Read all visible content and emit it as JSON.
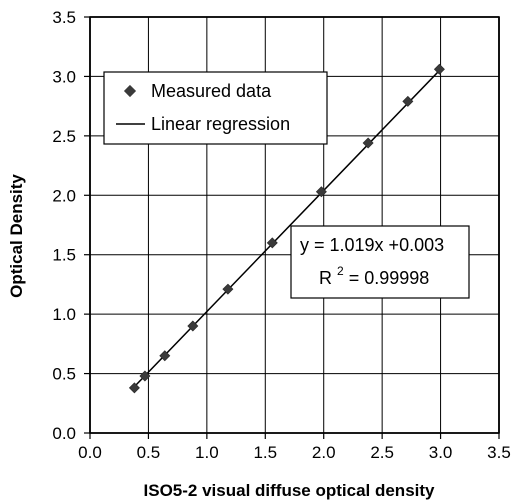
{
  "chart_data": {
    "type": "scatter",
    "title": "",
    "xlabel": "ISO5-2 visual diffuse optical density",
    "ylabel": "Optical Density",
    "xlim": [
      0.0,
      3.5
    ],
    "ylim": [
      0.0,
      3.5
    ],
    "xticks": [
      "0.0",
      "0.5",
      "1.0",
      "1.5",
      "2.0",
      "2.5",
      "3.0",
      "3.5"
    ],
    "yticks": [
      "0.0",
      "0.5",
      "1.0",
      "1.5",
      "2.0",
      "2.5",
      "3.0",
      "3.5"
    ],
    "grid": true,
    "legend_position": "top-left",
    "series": [
      {
        "name": "Measured data",
        "kind": "scatter",
        "marker": "diamond",
        "color": "#3a3a3a",
        "x": [
          0.38,
          0.47,
          0.64,
          0.88,
          1.18,
          1.56,
          1.98,
          2.38,
          2.72,
          2.99
        ],
        "y": [
          0.38,
          0.48,
          0.65,
          0.9,
          1.21,
          1.6,
          2.03,
          2.44,
          2.79,
          3.06
        ]
      },
      {
        "name": "Linear regression",
        "kind": "line",
        "color": "#000000",
        "x": [
          0.38,
          3.0
        ],
        "y": [
          0.39,
          3.06
        ]
      }
    ],
    "annotation": {
      "equation_prefix": "y = ",
      "equation_value": "1.019x +0.003",
      "r2_label": "R",
      "r2_sup": "2",
      "r2_value": " = 0.99998"
    },
    "colors": {
      "grid": "#000000",
      "marker": "#3a3a3a",
      "line": "#000000",
      "background": "#ffffff"
    }
  }
}
